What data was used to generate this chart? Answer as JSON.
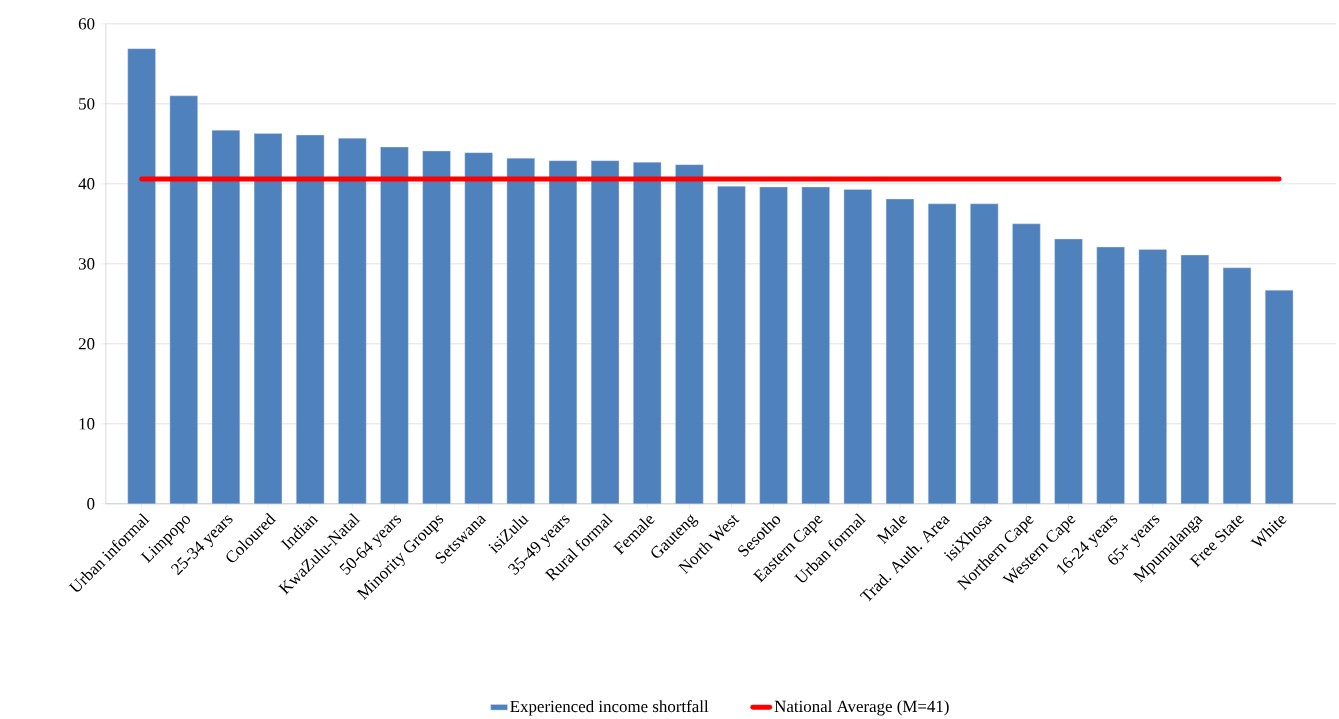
{
  "chart_data": {
    "type": "bar",
    "categories": [
      "Urban informal",
      "Limpopo",
      "25-34 years",
      "Coloured",
      "Indian",
      "KwaZulu-Natal",
      "50-64 years",
      "Minority Groups",
      "Setswana",
      "isiZulu",
      "35-49 years",
      "Rural formal",
      "Female",
      "Gauteng",
      "North West",
      "Sesotho",
      "Eastern Cape",
      "Urban formal",
      "Male",
      "Trad. Auth. Area",
      "isiXhosa",
      "Northern Cape",
      "Western Cape",
      "16-24 years",
      "65+ years",
      "Mpumalanga",
      "Free State",
      "White"
    ],
    "series": [
      {
        "name": "Experienced income shortfall",
        "color": "#4f81bd",
        "values": [
          56.9,
          51.0,
          46.7,
          46.3,
          46.1,
          45.7,
          44.6,
          44.1,
          43.9,
          43.2,
          42.9,
          42.9,
          42.7,
          42.4,
          39.7,
          39.6,
          39.6,
          39.3,
          38.1,
          37.5,
          37.5,
          35.0,
          33.1,
          32.1,
          31.8,
          31.1,
          29.5,
          26.7
        ]
      },
      {
        "name": "National Average (M=41)",
        "type": "line",
        "color": "#ff0000",
        "values": [
          40.6,
          40.6,
          40.6,
          40.6,
          40.6,
          40.6,
          40.6,
          40.6,
          40.6,
          40.6,
          40.6,
          40.6,
          40.6,
          40.6,
          40.6,
          40.6,
          40.6,
          40.6,
          40.6,
          40.6,
          40.6,
          40.6,
          40.6,
          40.6,
          40.6,
          40.6,
          40.6,
          40.6
        ]
      }
    ],
    "ylim": [
      0,
      60
    ],
    "yticks": [
      0,
      10,
      20,
      30,
      40,
      50,
      60
    ],
    "grid": "y",
    "legend": "bottom"
  }
}
